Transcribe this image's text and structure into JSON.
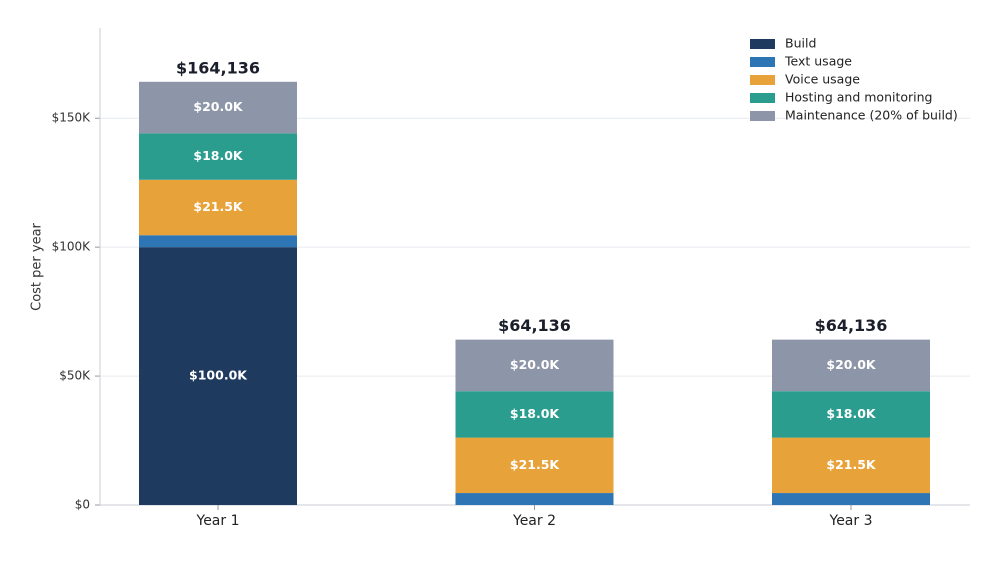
{
  "chart_data": {
    "type": "stacked_bar",
    "y_label": "Cost per year",
    "categories": [
      "Year 1",
      "Year 2",
      "Year 3"
    ],
    "series": [
      {
        "name": "Build",
        "color": "#1f3a5f",
        "values": [
          100000,
          0,
          0
        ],
        "value_labels": [
          "$100.0K",
          null,
          null
        ]
      },
      {
        "name": "Text usage",
        "color": "#2e75b6",
        "values": [
          4636,
          4636,
          4636
        ]
      },
      {
        "name": "Voice usage",
        "color": "#e8a23a",
        "values": [
          21500,
          21500,
          21500
        ],
        "value_labels": [
          "$21.5K",
          "$21.5K",
          "$21.5K"
        ]
      },
      {
        "name": "Hosting and monitoring",
        "color": "#2a9d8f",
        "values": [
          18000,
          18000,
          18000
        ],
        "value_labels": [
          "$18.0K",
          "$18.0K",
          "$18.0K"
        ]
      },
      {
        "name": "Maintenance (20% of build)",
        "color": "#8d95a8",
        "values": [
          20000,
          20000,
          20000
        ],
        "value_labels": [
          "$20.0K",
          "$20.0K",
          "$20.0K"
        ]
      }
    ],
    "totals": [
      164136,
      64136,
      64136
    ],
    "total_labels": [
      "$164,136",
      "$64,136",
      "$64,136"
    ],
    "ylim": [
      0,
      185000
    ],
    "yticks": [
      {
        "value": 0,
        "label": "$0"
      },
      {
        "value": 50000,
        "label": "$50K"
      },
      {
        "value": 100000,
        "label": "$100K"
      },
      {
        "value": 150000,
        "label": "$150K"
      }
    ],
    "grid": true,
    "legend": "upper-right"
  }
}
